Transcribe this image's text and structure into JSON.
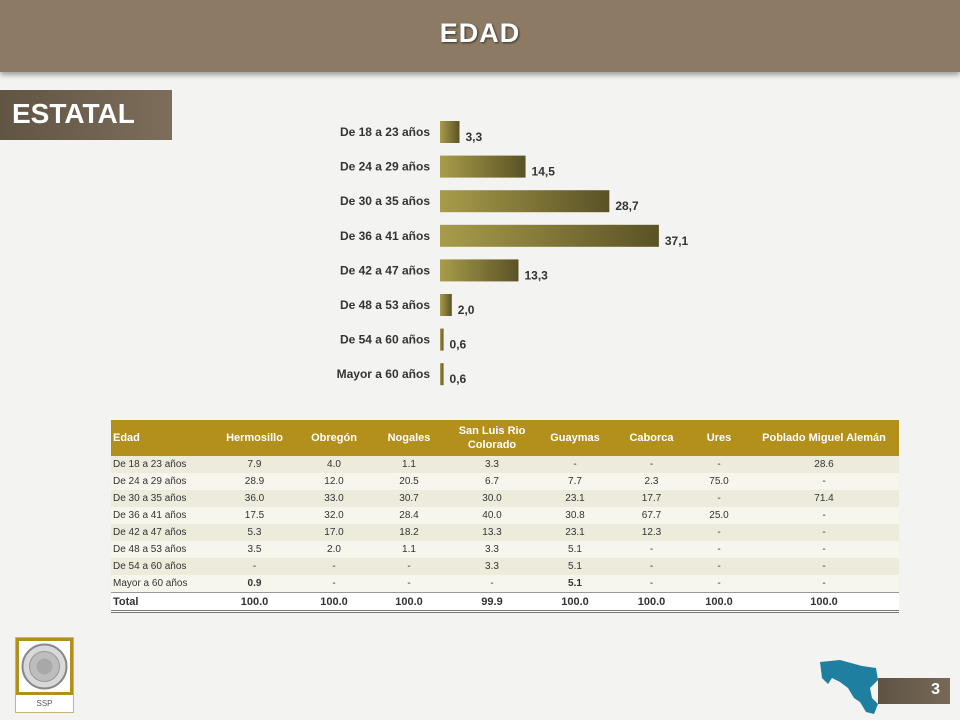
{
  "header": {
    "title": "EDAD"
  },
  "section": {
    "label": "ESTATAL"
  },
  "chart_data": {
    "type": "bar",
    "orientation": "horizontal",
    "categories": [
      "De 18 a 23 años",
      "De 24 a 29 años",
      "De 30 a 35 años",
      "De 36 a 41 años",
      "De 42 a 47 años",
      "De 48 a 53 años",
      "De 54 a 60 años",
      "Mayor a 60 años"
    ],
    "values": [
      3.3,
      14.5,
      28.7,
      37.1,
      13.3,
      2.0,
      0.6,
      0.6
    ],
    "value_labels": [
      "3,3",
      "14,5",
      "28,7",
      "37,1",
      "13,3",
      "2,0",
      "0,6",
      "0,6"
    ],
    "colors": {
      "bar_light": "#a39845",
      "bar_dark": "#5e5528"
    }
  },
  "table": {
    "headers": [
      "Edad",
      "Hermosillo",
      "Obregón",
      "Nogales",
      "San Luis Rio Colorado",
      "Guaymas",
      "Caborca",
      "Ures",
      "Poblado Miguel Alemán"
    ],
    "rows": [
      [
        "De 18 a 23 años",
        "7.9",
        "4.0",
        "1.1",
        "3.3",
        "-",
        "-",
        "-",
        "28.6"
      ],
      [
        "De 24 a 29 años",
        "28.9",
        "12.0",
        "20.5",
        "6.7",
        "7.7",
        "2.3",
        "75.0",
        "-"
      ],
      [
        "De 30 a 35 años",
        "36.0",
        "33.0",
        "30.7",
        "30.0",
        "23.1",
        "17.7",
        "-",
        "71.4"
      ],
      [
        "De 36 a 41 años",
        "17.5",
        "32.0",
        "28.4",
        "40.0",
        "30.8",
        "67.7",
        "25.0",
        "-"
      ],
      [
        "De 42 a 47 años",
        "5.3",
        "17.0",
        "18.2",
        "13.3",
        "23.1",
        "12.3",
        "-",
        "-"
      ],
      [
        "De 48 a 53 años",
        "3.5",
        "2.0",
        "1.1",
        "3.3",
        "5.1",
        "-",
        "-",
        "-"
      ],
      [
        "De 54 a 60 años",
        "-",
        "-",
        "-",
        "3.3",
        "5.1",
        "-",
        "-",
        "-"
      ],
      [
        "Mayor a 60 años",
        "0.9",
        "-",
        "-",
        "-",
        "5.1",
        "-",
        "-",
        "-"
      ]
    ],
    "total": [
      "Total",
      "100.0",
      "100.0",
      "100.0",
      "99.9",
      "100.0",
      "100.0",
      "100.0",
      "100.0"
    ]
  },
  "logo": {
    "text": "SSP"
  },
  "page": {
    "number": "3"
  },
  "colors": {
    "header": "#8c7a64",
    "table_header": "#b38f1c",
    "map": "#1e7fa0"
  }
}
